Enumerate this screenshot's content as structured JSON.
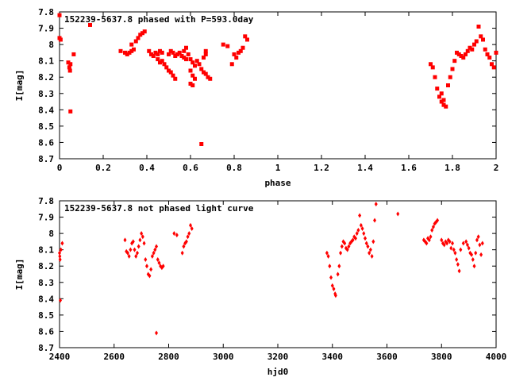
{
  "chart_data": [
    {
      "type": "scatter",
      "title": "152239-5637.8 phased with P=593.0day",
      "xlabel": "phase",
      "ylabel": "I[mag]",
      "xlim": [
        0,
        2
      ],
      "ylim": [
        7.8,
        8.7
      ],
      "y_inverted": true,
      "x_ticks": [
        "0",
        "0.2",
        "0.4",
        "0.6",
        "0.8",
        "1",
        "1.2",
        "1.4",
        "1.6",
        "1.8",
        "2"
      ],
      "x_tick_values": [
        0,
        0.2,
        0.4,
        0.6,
        0.8,
        1.0,
        1.2,
        1.4,
        1.6,
        1.8,
        2.0
      ],
      "y_ticks": [
        "7.8",
        "7.9",
        "8",
        "8.1",
        "8.2",
        "8.3",
        "8.4",
        "8.5",
        "8.6",
        "8.7"
      ],
      "y_tick_values": [
        7.8,
        7.9,
        8.0,
        8.1,
        8.2,
        8.3,
        8.4,
        8.5,
        8.6,
        8.7
      ],
      "marker_color": "#ff0000",
      "series": [
        {
          "points": [
            [
              0.0,
              7.82
            ],
            [
              0.0,
              7.96
            ],
            [
              0.005,
              7.97
            ],
            [
              0.04,
              8.11
            ],
            [
              0.045,
              8.14
            ],
            [
              0.05,
              8.12
            ],
            [
              0.048,
              8.16
            ],
            [
              0.05,
              8.41
            ],
            [
              0.065,
              8.06
            ],
            [
              0.14,
              7.88
            ],
            [
              0.28,
              8.04
            ],
            [
              0.3,
              8.05
            ],
            [
              0.31,
              8.06
            ],
            [
              0.32,
              8.05
            ],
            [
              0.33,
              8.04
            ],
            [
              0.34,
              8.03
            ],
            [
              0.33,
              8.0
            ],
            [
              0.35,
              7.98
            ],
            [
              0.36,
              7.96
            ],
            [
              0.37,
              7.94
            ],
            [
              0.38,
              7.93
            ],
            [
              0.39,
              7.92
            ],
            [
              0.41,
              8.04
            ],
            [
              0.42,
              8.06
            ],
            [
              0.43,
              8.07
            ],
            [
              0.44,
              8.05
            ],
            [
              0.45,
              8.06
            ],
            [
              0.46,
              8.04
            ],
            [
              0.47,
              8.05
            ],
            [
              0.45,
              8.09
            ],
            [
              0.46,
              8.11
            ],
            [
              0.47,
              8.1
            ],
            [
              0.48,
              8.12
            ],
            [
              0.49,
              8.14
            ],
            [
              0.5,
              8.16
            ],
            [
              0.51,
              8.17
            ],
            [
              0.52,
              8.19
            ],
            [
              0.53,
              8.21
            ],
            [
              0.5,
              8.06
            ],
            [
              0.51,
              8.04
            ],
            [
              0.52,
              8.05
            ],
            [
              0.53,
              8.07
            ],
            [
              0.54,
              8.06
            ],
            [
              0.55,
              8.05
            ],
            [
              0.56,
              8.07
            ],
            [
              0.57,
              8.08
            ],
            [
              0.58,
              8.09
            ],
            [
              0.57,
              8.04
            ],
            [
              0.58,
              8.02
            ],
            [
              0.59,
              8.06
            ],
            [
              0.6,
              8.09
            ],
            [
              0.61,
              8.11
            ],
            [
              0.62,
              8.13
            ],
            [
              0.6,
              8.16
            ],
            [
              0.61,
              8.19
            ],
            [
              0.62,
              8.21
            ],
            [
              0.6,
              8.24
            ],
            [
              0.61,
              8.25
            ],
            [
              0.63,
              8.1
            ],
            [
              0.64,
              8.12
            ],
            [
              0.65,
              8.15
            ],
            [
              0.66,
              8.17
            ],
            [
              0.67,
              8.18
            ],
            [
              0.66,
              8.08
            ],
            [
              0.67,
              8.04
            ],
            [
              0.67,
              8.06
            ],
            [
              0.68,
              8.2
            ],
            [
              0.69,
              8.21
            ],
            [
              0.65,
              8.61
            ],
            [
              0.75,
              8.0
            ],
            [
              0.77,
              8.01
            ],
            [
              0.8,
              8.06
            ],
            [
              0.79,
              8.12
            ],
            [
              0.81,
              8.08
            ],
            [
              0.82,
              8.05
            ],
            [
              0.83,
              8.04
            ],
            [
              0.84,
              8.02
            ],
            [
              0.85,
              7.95
            ],
            [
              0.86,
              7.97
            ],
            [
              1.7,
              8.12
            ],
            [
              1.71,
              8.14
            ],
            [
              1.72,
              8.2
            ],
            [
              1.73,
              8.27
            ],
            [
              1.74,
              8.32
            ],
            [
              1.75,
              8.35
            ],
            [
              1.76,
              8.37
            ],
            [
              1.77,
              8.38
            ],
            [
              1.75,
              8.3
            ],
            [
              1.76,
              8.34
            ],
            [
              1.78,
              8.25
            ],
            [
              1.79,
              8.2
            ],
            [
              1.8,
              8.15
            ],
            [
              1.81,
              8.1
            ],
            [
              1.82,
              8.05
            ],
            [
              1.83,
              8.06
            ],
            [
              1.84,
              8.07
            ],
            [
              1.85,
              8.08
            ],
            [
              1.86,
              8.06
            ],
            [
              1.87,
              8.04
            ],
            [
              1.88,
              8.02
            ],
            [
              1.89,
              8.03
            ],
            [
              1.9,
              8.0
            ],
            [
              1.91,
              7.98
            ],
            [
              1.92,
              7.89
            ],
            [
              1.93,
              7.95
            ],
            [
              1.94,
              7.97
            ],
            [
              1.95,
              8.03
            ],
            [
              1.96,
              8.06
            ],
            [
              1.97,
              8.08
            ],
            [
              1.98,
              8.12
            ],
            [
              1.99,
              8.14
            ],
            [
              2.0,
              8.05
            ]
          ]
        }
      ]
    },
    {
      "type": "scatter",
      "title": "152239-5637.8 not phased light curve",
      "xlabel": "hjd0",
      "ylabel": "I[mag]",
      "xlim": [
        2400,
        4000
      ],
      "ylim": [
        7.8,
        8.7
      ],
      "y_inverted": true,
      "x_ticks": [
        "2400",
        "2600",
        "2800",
        "3000",
        "3200",
        "3400",
        "3600",
        "3800",
        "4000"
      ],
      "x_tick_values": [
        2400,
        2600,
        2800,
        3000,
        3200,
        3400,
        3600,
        3800,
        4000
      ],
      "y_ticks": [
        "7.8",
        "7.9",
        "8",
        "8.1",
        "8.2",
        "8.3",
        "8.4",
        "8.5",
        "8.6",
        "8.7"
      ],
      "y_tick_values": [
        7.8,
        7.9,
        8.0,
        8.1,
        8.2,
        8.3,
        8.4,
        8.5,
        8.6,
        8.7
      ],
      "marker_color": "#ff0000",
      "series": [
        {
          "points": [
            [
              2400,
              8.12
            ],
            [
              2401,
              8.14
            ],
            [
              2402,
              8.16
            ],
            [
              2403,
              8.41
            ],
            [
              2410,
              8.06
            ],
            [
              2405,
              8.1
            ],
            [
              2640,
              8.04
            ],
            [
              2645,
              8.11
            ],
            [
              2650,
              8.12
            ],
            [
              2655,
              8.14
            ],
            [
              2660,
              8.1
            ],
            [
              2665,
              8.06
            ],
            [
              2670,
              8.05
            ],
            [
              2675,
              8.1
            ],
            [
              2680,
              8.14
            ],
            [
              2685,
              8.12
            ],
            [
              2690,
              8.08
            ],
            [
              2695,
              8.04
            ],
            [
              2700,
              8.0
            ],
            [
              2705,
              8.02
            ],
            [
              2710,
              8.06
            ],
            [
              2715,
              8.16
            ],
            [
              2720,
              8.2
            ],
            [
              2725,
              8.25
            ],
            [
              2730,
              8.26
            ],
            [
              2735,
              8.22
            ],
            [
              2740,
              8.14
            ],
            [
              2745,
              8.12
            ],
            [
              2750,
              8.1
            ],
            [
              2755,
              8.08
            ],
            [
              2760,
              8.16
            ],
            [
              2765,
              8.18
            ],
            [
              2770,
              8.2
            ],
            [
              2775,
              8.21
            ],
            [
              2780,
              8.2
            ],
            [
              2755,
              8.61
            ],
            [
              2820,
              8.0
            ],
            [
              2830,
              8.01
            ],
            [
              2850,
              8.12
            ],
            [
              2855,
              8.08
            ],
            [
              2860,
              8.06
            ],
            [
              2865,
              8.05
            ],
            [
              2870,
              8.02
            ],
            [
              2875,
              8.0
            ],
            [
              2880,
              7.95
            ],
            [
              2885,
              7.97
            ],
            [
              3380,
              8.12
            ],
            [
              3385,
              8.14
            ],
            [
              3390,
              8.2
            ],
            [
              3395,
              8.27
            ],
            [
              3400,
              8.32
            ],
            [
              3405,
              8.34
            ],
            [
              3410,
              8.37
            ],
            [
              3412,
              8.38
            ],
            [
              3420,
              8.25
            ],
            [
              3425,
              8.2
            ],
            [
              3430,
              8.12
            ],
            [
              3435,
              8.08
            ],
            [
              3440,
              8.05
            ],
            [
              3445,
              8.06
            ],
            [
              3450,
              8.09
            ],
            [
              3455,
              8.1
            ],
            [
              3460,
              8.08
            ],
            [
              3465,
              8.06
            ],
            [
              3470,
              8.05
            ],
            [
              3475,
              8.04
            ],
            [
              3480,
              8.02
            ],
            [
              3485,
              8.03
            ],
            [
              3490,
              8.0
            ],
            [
              3495,
              7.98
            ],
            [
              3500,
              7.89
            ],
            [
              3505,
              7.95
            ],
            [
              3510,
              7.97
            ],
            [
              3515,
              8.0
            ],
            [
              3520,
              8.03
            ],
            [
              3525,
              8.06
            ],
            [
              3530,
              8.08
            ],
            [
              3535,
              8.12
            ],
            [
              3540,
              8.1
            ],
            [
              3545,
              8.14
            ],
            [
              3550,
              8.05
            ],
            [
              3555,
              7.92
            ],
            [
              3560,
              7.82
            ],
            [
              3640,
              7.88
            ],
            [
              3735,
              8.04
            ],
            [
              3740,
              8.05
            ],
            [
              3745,
              8.06
            ],
            [
              3750,
              8.03
            ],
            [
              3755,
              8.04
            ],
            [
              3760,
              8.02
            ],
            [
              3765,
              7.98
            ],
            [
              3770,
              7.96
            ],
            [
              3775,
              7.94
            ],
            [
              3780,
              7.93
            ],
            [
              3785,
              7.92
            ],
            [
              3800,
              8.04
            ],
            [
              3805,
              8.06
            ],
            [
              3810,
              8.07
            ],
            [
              3815,
              8.05
            ],
            [
              3820,
              8.06
            ],
            [
              3825,
              8.04
            ],
            [
              3830,
              8.05
            ],
            [
              3835,
              8.09
            ],
            [
              3840,
              8.06
            ],
            [
              3845,
              8.1
            ],
            [
              3850,
              8.12
            ],
            [
              3855,
              8.16
            ],
            [
              3860,
              8.19
            ],
            [
              3865,
              8.23
            ],
            [
              3870,
              8.1
            ],
            [
              3880,
              8.06
            ],
            [
              3890,
              8.05
            ],
            [
              3895,
              8.07
            ],
            [
              3900,
              8.09
            ],
            [
              3905,
              8.12
            ],
            [
              3910,
              8.13
            ],
            [
              3915,
              8.16
            ],
            [
              3920,
              8.2
            ],
            [
              3925,
              8.12
            ],
            [
              3930,
              8.04
            ],
            [
              3935,
              8.02
            ],
            [
              3940,
              8.07
            ],
            [
              3945,
              8.13
            ],
            [
              3950,
              8.06
            ]
          ]
        }
      ]
    }
  ]
}
